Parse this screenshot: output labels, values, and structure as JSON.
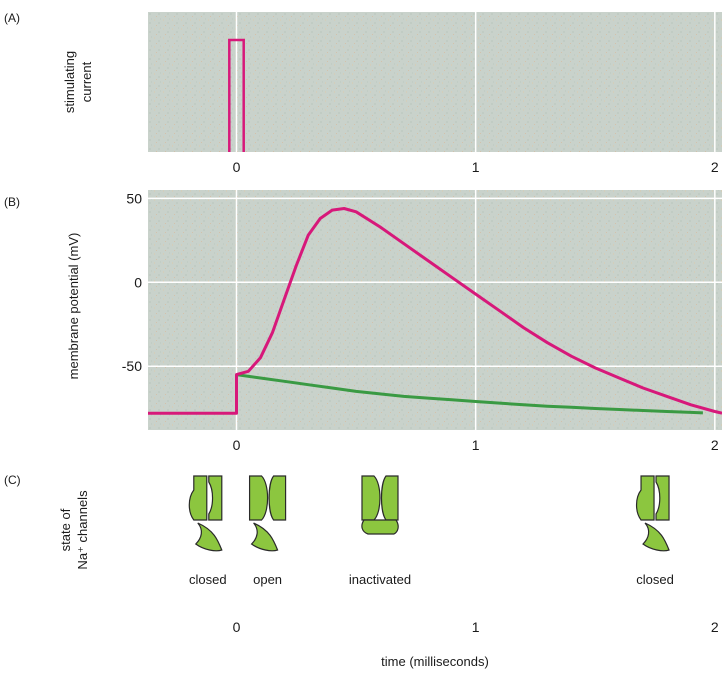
{
  "figure": {
    "panel_a_label": "(A)",
    "panel_b_label": "(B)",
    "panel_c_label": "(C)",
    "xlabel": "time (milliseconds)",
    "x_ticks": [
      "0",
      "1",
      "2"
    ]
  },
  "colors": {
    "plot_bg": "#c9d2cb",
    "grid": "#ffffff",
    "action_potential": "#d7187a",
    "passive_response": "#3a9a43",
    "stimulus": "#d7187a",
    "channel_fill": "#8cc63f",
    "channel_stroke": "#2a2a2a"
  },
  "chart_data": [
    {
      "type": "line",
      "panel": "A",
      "ylabel_line1": "stimulating",
      "ylabel_line2": "current",
      "xlim": [
        -0.37,
        2.03
      ],
      "ylim": [
        0,
        1
      ],
      "x_ticks": [
        0,
        1,
        2
      ],
      "grid": true,
      "series": [
        {
          "values": [
            [
              -0.03,
              0
            ],
            [
              -0.03,
              0.8
            ],
            [
              0.03,
              0.8
            ],
            [
              0.03,
              0
            ]
          ]
        }
      ]
    },
    {
      "type": "line",
      "panel": "B",
      "ylabel": "membrane potential (mV)",
      "xlim": [
        -0.37,
        2.03
      ],
      "ylim": [
        -88,
        55
      ],
      "x_ticks": [
        0,
        1,
        2
      ],
      "y_ticks": [
        50,
        0,
        -50
      ],
      "grid": true,
      "series": [
        {
          "values": [
            [
              -0.37,
              -78
            ],
            [
              0,
              -78
            ],
            [
              0,
              -55
            ],
            [
              0.05,
              -53
            ],
            [
              0.1,
              -45
            ],
            [
              0.15,
              -30
            ],
            [
              0.2,
              -10
            ],
            [
              0.25,
              10
            ],
            [
              0.3,
              28
            ],
            [
              0.35,
              38
            ],
            [
              0.4,
              43
            ],
            [
              0.45,
              44
            ],
            [
              0.5,
              42
            ],
            [
              0.6,
              33
            ],
            [
              0.7,
              23
            ],
            [
              0.8,
              13
            ],
            [
              0.9,
              3
            ],
            [
              1.0,
              -7
            ],
            [
              1.1,
              -17
            ],
            [
              1.2,
              -27
            ],
            [
              1.3,
              -36
            ],
            [
              1.4,
              -44
            ],
            [
              1.5,
              -51
            ],
            [
              1.6,
              -57
            ],
            [
              1.7,
              -63
            ],
            [
              1.8,
              -68
            ],
            [
              1.9,
              -73
            ],
            [
              2.0,
              -77
            ],
            [
              2.03,
              -78
            ]
          ]
        },
        {
          "values": [
            [
              0,
              -55
            ],
            [
              0.1,
              -57
            ],
            [
              0.2,
              -59
            ],
            [
              0.3,
              -61
            ],
            [
              0.4,
              -63
            ],
            [
              0.5,
              -65
            ],
            [
              0.6,
              -66.5
            ],
            [
              0.7,
              -68
            ],
            [
              0.8,
              -69
            ],
            [
              0.9,
              -70
            ],
            [
              1.0,
              -71
            ],
            [
              1.1,
              -72
            ],
            [
              1.2,
              -73
            ],
            [
              1.3,
              -73.8
            ],
            [
              1.4,
              -74.5
            ],
            [
              1.5,
              -75.2
            ],
            [
              1.6,
              -75.8
            ],
            [
              1.7,
              -76.4
            ],
            [
              1.8,
              -77
            ],
            [
              1.9,
              -77.5
            ],
            [
              1.95,
              -77.8
            ]
          ]
        }
      ]
    }
  ],
  "channel_states": {
    "ylabel_line1": "state of",
    "ylabel_line2": "Na⁺ channels",
    "items": [
      {
        "label": "closed",
        "state": "closed",
        "time": -0.12
      },
      {
        "label": "open",
        "state": "open",
        "time": 0.13
      },
      {
        "label": "inactivated",
        "state": "inactivated",
        "time": 0.6
      },
      {
        "label": "closed",
        "state": "closed",
        "time": 1.75
      }
    ]
  }
}
